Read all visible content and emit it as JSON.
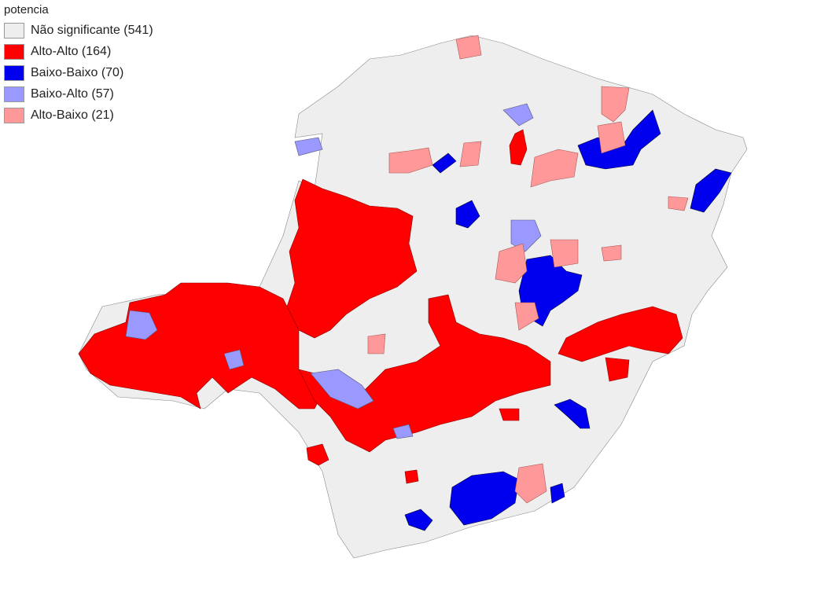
{
  "legend": {
    "title": "potencia",
    "items": [
      {
        "label": "Não significante (541)",
        "color": "#eeeeee"
      },
      {
        "label": "Alto-Alto (164)",
        "color": "#ff0000"
      },
      {
        "label": "Baixo-Baixo (70)",
        "color": "#0000ee"
      },
      {
        "label": "Baixo-Alto (57)",
        "color": "#9999ff"
      },
      {
        "label": "Alto-Baixo (21)",
        "color": "#ff9999"
      }
    ]
  }
}
